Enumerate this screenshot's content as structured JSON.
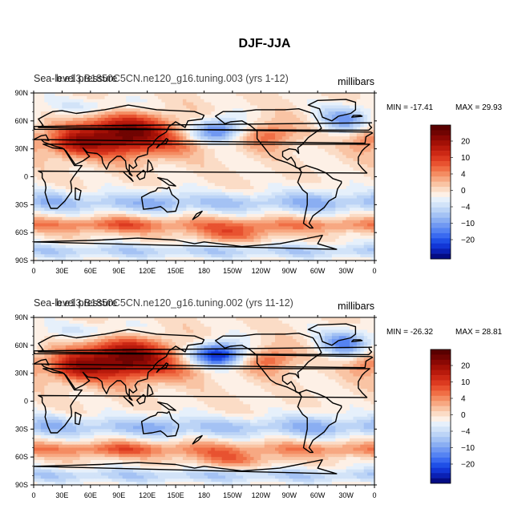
{
  "page": {
    "title": "DJF-JJA"
  },
  "colors": {
    "levels": [
      -24,
      -22,
      -20,
      -18,
      -16,
      -14,
      -12,
      -10,
      -8,
      -6,
      -4,
      -2,
      0,
      2,
      4,
      6,
      8,
      10,
      12,
      14,
      16,
      18,
      20,
      22,
      24
    ],
    "palette": [
      "#040c84",
      "#0a20b4",
      "#1236d6",
      "#1f4fe6",
      "#3a6af0",
      "#5583f2",
      "#7098f2",
      "#8aaef2",
      "#a4c2f4",
      "#bcd4f6",
      "#d2e3f8",
      "#e6f0fb",
      "#fdf0e6",
      "#fbdcc6",
      "#f9c4a4",
      "#f7a882",
      "#f48c62",
      "#f06e45",
      "#e85230",
      "#dc3a20",
      "#cc2814",
      "#b81a0c",
      "#a21006",
      "#8a0804",
      "#700402",
      "#5a0000"
    ],
    "coast": "#000000"
  },
  "chart_data": [
    {
      "type": "heatmap",
      "title": "Sea-level pressure",
      "case_label": "b.e13.B1850C5CN.ne120_g16.tuning.003 (yrs 1-12)",
      "units": "millibars",
      "min_label": "MIN = -17.41",
      "max_label": "MAX = 29.93",
      "min": -17.41,
      "max": 29.93,
      "xticks": [
        "0",
        "30E",
        "60E",
        "90E",
        "120E",
        "150E",
        "180",
        "150W",
        "120W",
        "90W",
        "60W",
        "30W",
        "0"
      ],
      "yticks": [
        "90N",
        "60N",
        "30N",
        "0",
        "30S",
        "60S",
        "90S"
      ],
      "legend_labels": [
        "20",
        "10",
        "4",
        "0",
        "-4",
        "-10",
        "-20"
      ],
      "variant": 0
    },
    {
      "type": "heatmap",
      "title": "Sea-level pressure",
      "case_label": "b.e13.B1850C5CN.ne120_g16.tuning.002 (yrs 11-12)",
      "units": "millibars",
      "min_label": "MIN = -26.32",
      "max_label": "MAX = 28.81",
      "min": -26.32,
      "max": 28.81,
      "xticks": [
        "0",
        "30E",
        "60E",
        "90E",
        "120E",
        "150E",
        "180",
        "150W",
        "120W",
        "90W",
        "60W",
        "30W",
        "0"
      ],
      "yticks": [
        "90N",
        "60N",
        "30N",
        "0",
        "30S",
        "60S",
        "90S"
      ],
      "legend_labels": [
        "20",
        "10",
        "4",
        "0",
        "-4",
        "-10",
        "-20"
      ],
      "variant": 1
    }
  ]
}
